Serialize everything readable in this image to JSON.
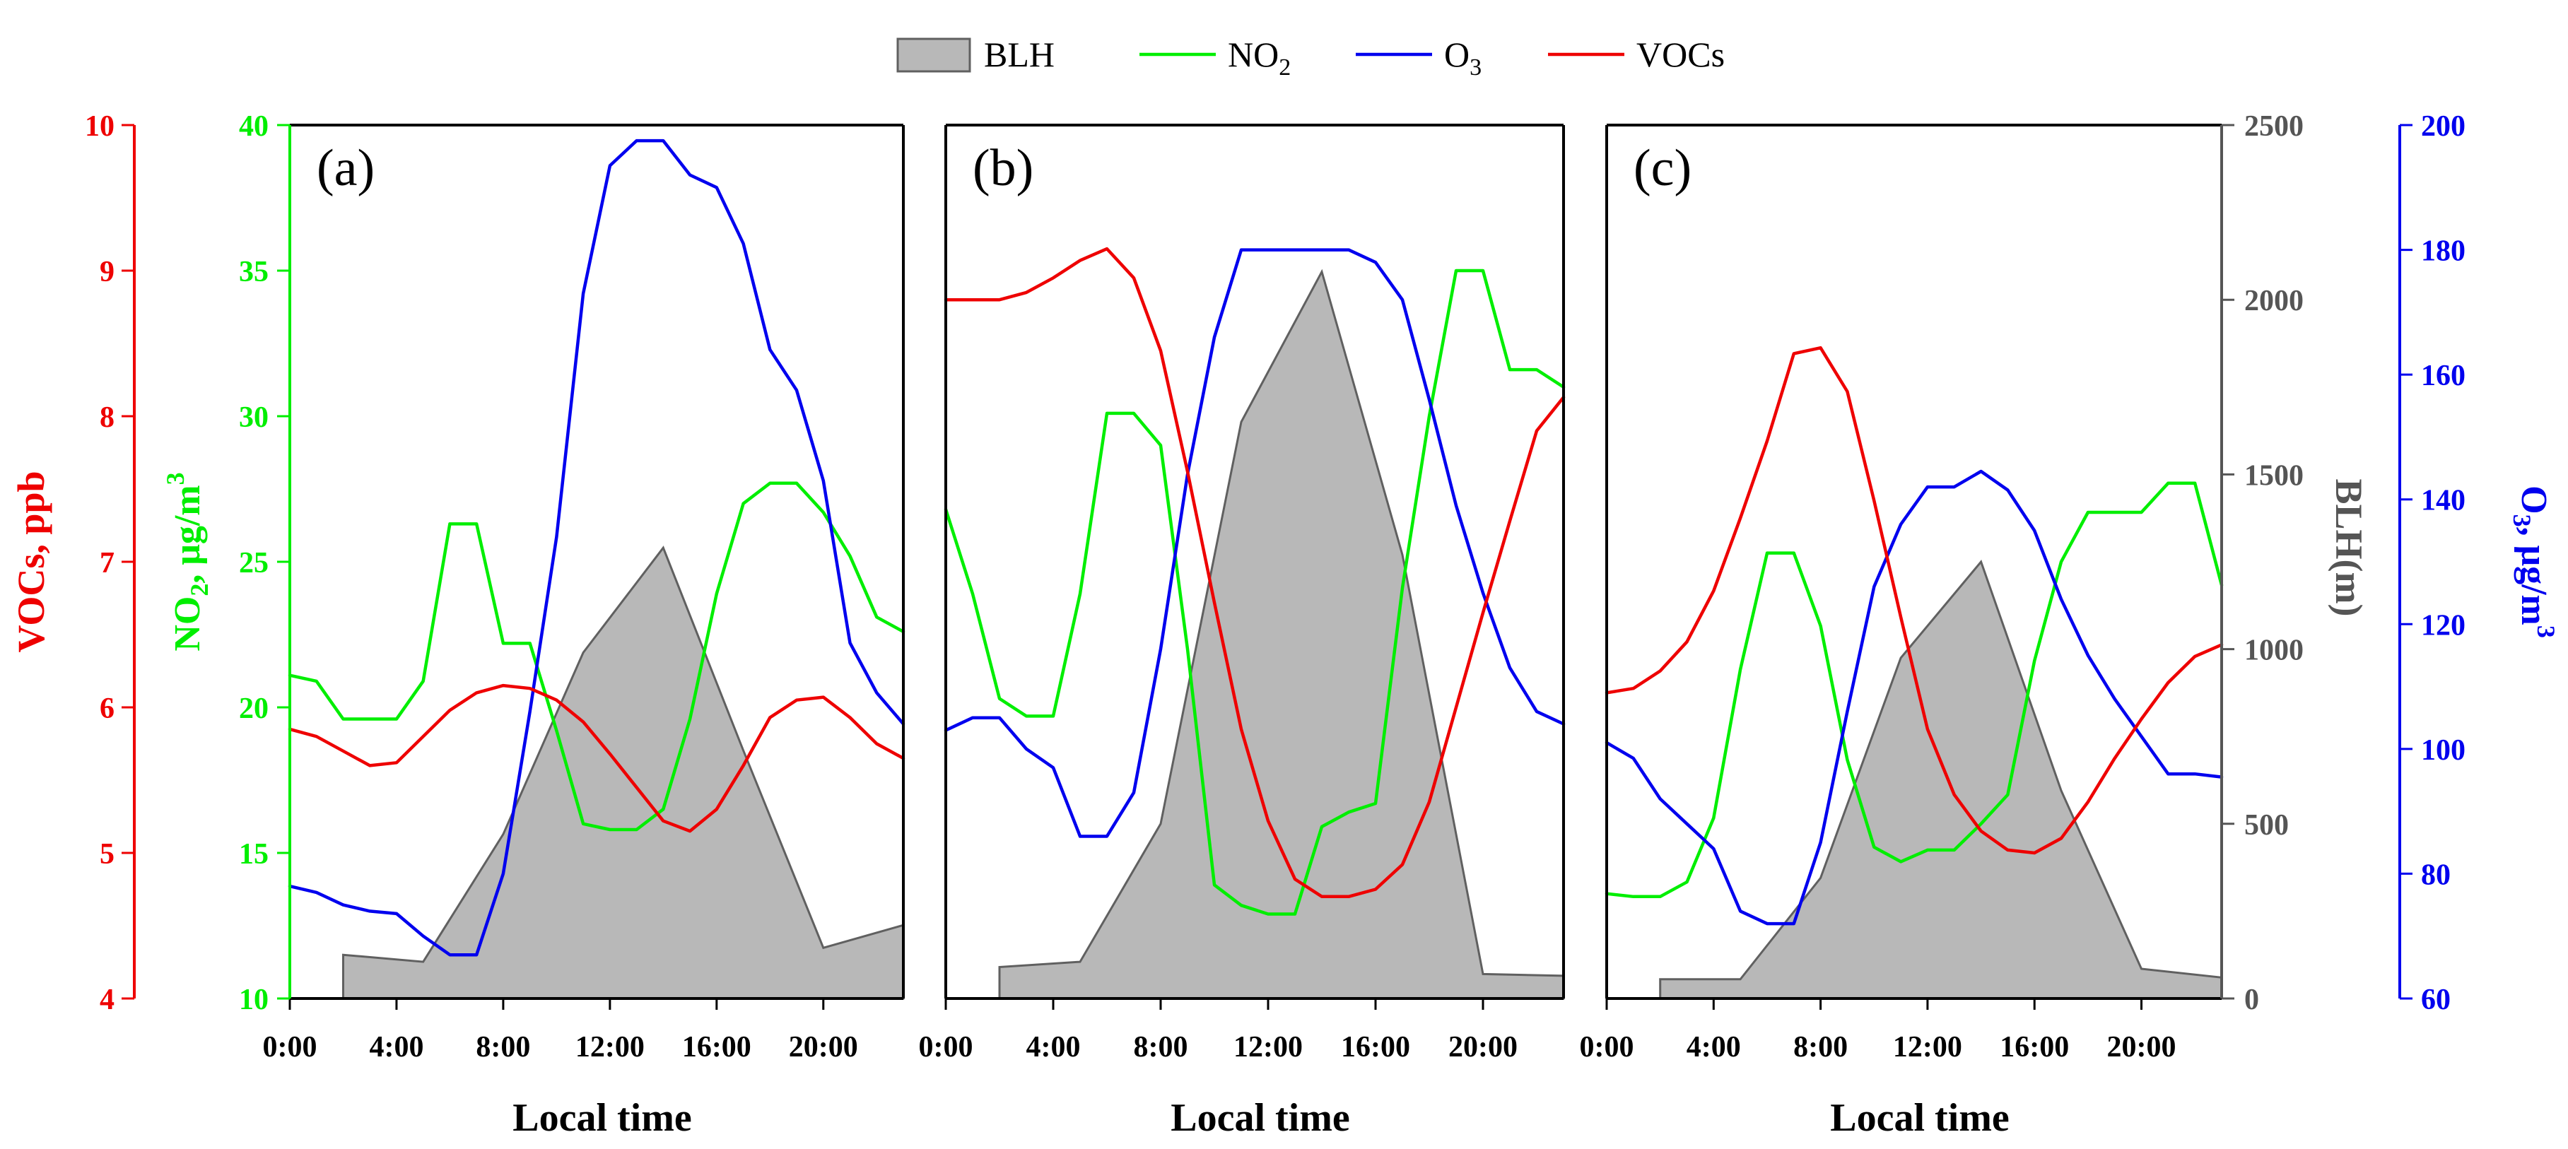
{
  "chart_data": {
    "type": "line",
    "legend": {
      "position": "top-center",
      "items": [
        {
          "key": "blh",
          "label": "BLH",
          "kind": "area"
        },
        {
          "key": "no2",
          "label": "NO",
          "sub": "2",
          "kind": "line"
        },
        {
          "key": "o3",
          "label": "O",
          "sub": "3",
          "kind": "line"
        },
        {
          "key": "vocs",
          "label": "VOCs",
          "kind": "line"
        }
      ]
    },
    "colors": {
      "blh_fill": "#b8b8b8",
      "blh_stroke": "#606060",
      "no2": "#00ee00",
      "o3": "#0000ee",
      "vocs": "#ee0000",
      "axis": "#000000",
      "blh_axis": "#555555"
    },
    "axes": {
      "vocs": {
        "label": "VOCs, ppb",
        "ylim": [
          4,
          10
        ],
        "ticks": [
          "4",
          "5",
          "6",
          "7",
          "8",
          "9",
          "10"
        ]
      },
      "no2": {
        "label_main": "NO",
        "label_sub": "2",
        "label_rest": ", μg/m",
        "label_sup": "3",
        "ylim": [
          10,
          40
        ],
        "ticks": [
          "10",
          "15",
          "20",
          "25",
          "30",
          "35",
          "40"
        ]
      },
      "blh": {
        "label": "BLH(m)",
        "ylim": [
          0,
          2500
        ],
        "ticks": [
          "0",
          "500",
          "1000",
          "1500",
          "2000",
          "2500"
        ]
      },
      "o3": {
        "label_main": "O",
        "label_sub": "3",
        "label_rest": ", μg/m",
        "label_sup": "3",
        "ylim": [
          60,
          200
        ],
        "ticks": [
          "60",
          "80",
          "100",
          "120",
          "140",
          "160",
          "180",
          "200"
        ]
      },
      "x": {
        "label": "Local time",
        "xlim": [
          0,
          23
        ],
        "ticks": [
          "0:00",
          "4:00",
          "8:00",
          "12:00",
          "16:00",
          "20:00"
        ]
      }
    },
    "hours": [
      0,
      1,
      2,
      3,
      4,
      5,
      6,
      7,
      8,
      9,
      10,
      11,
      12,
      13,
      14,
      15,
      16,
      17,
      18,
      19,
      20,
      21,
      22,
      23
    ],
    "panels": [
      {
        "label": "(a)",
        "blh": {
          "x": [
            2,
            5,
            8,
            11,
            14,
            17,
            20,
            23
          ],
          "values": [
            125,
            105,
            470,
            990,
            1290,
            710,
            145,
            210
          ]
        },
        "no2": [
          21.1,
          20.9,
          19.6,
          19.6,
          19.6,
          20.9,
          26.3,
          26.3,
          22.2,
          22.2,
          19.2,
          16,
          15.8,
          15.8,
          16.5,
          19.6,
          23.9,
          27,
          27.7,
          27.7,
          26.7,
          25.2,
          23.1,
          22.6
        ],
        "o3": [
          78,
          77,
          75,
          74,
          73.6,
          70,
          67,
          67,
          80,
          106,
          134,
          173,
          193.5,
          197.5,
          197.5,
          192,
          190,
          181,
          164,
          157.5,
          143,
          117,
          109,
          104
        ],
        "vocs": [
          5.85,
          5.8,
          5.7,
          5.6,
          5.62,
          5.8,
          5.98,
          6.1,
          6.15,
          6.13,
          6.05,
          5.9,
          5.68,
          5.45,
          5.22,
          5.15,
          5.3,
          5.6,
          5.93,
          6.05,
          6.07,
          5.93,
          5.75,
          5.65
        ]
      },
      {
        "label": "(b)",
        "blh": {
          "x": [
            2,
            5,
            8,
            11,
            14,
            17,
            20,
            23
          ],
          "values": [
            90,
            105,
            500,
            1650,
            2080,
            1270,
            70,
            65
          ]
        },
        "no2": [
          26.8,
          23.9,
          20.3,
          19.7,
          19.7,
          23.9,
          30.1,
          30.1,
          29,
          22,
          13.9,
          13.2,
          12.9,
          12.9,
          15.9,
          16.4,
          16.7,
          24.1,
          30,
          35,
          35,
          31.6,
          31.6,
          31
        ],
        "o3": [
          103,
          105,
          105,
          100,
          97,
          86,
          86,
          93,
          116,
          144,
          166,
          180,
          180,
          180,
          180,
          180,
          178,
          172,
          156,
          139,
          125,
          113,
          106,
          104
        ],
        "vocs": [
          8.8,
          8.8,
          8.8,
          8.85,
          8.95,
          9.07,
          9.15,
          8.95,
          8.45,
          7.62,
          6.72,
          5.85,
          5.22,
          4.82,
          4.7,
          4.7,
          4.75,
          4.92,
          5.35,
          6,
          6.65,
          7.28,
          7.9,
          8.13
        ]
      },
      {
        "label": "(c)",
        "blh": {
          "x": [
            2,
            5,
            8,
            11,
            14,
            17,
            20,
            23
          ],
          "values": [
            55,
            55,
            345,
            975,
            1250,
            595,
            85,
            60
          ]
        },
        "no2": [
          13.6,
          13.5,
          13.5,
          14,
          16.2,
          21.3,
          25.3,
          25.3,
          22.8,
          18.2,
          15.2,
          14.7,
          15.1,
          15.1,
          16,
          17,
          21.6,
          25,
          26.7,
          26.7,
          26.7,
          27.7,
          27.7,
          24.2
        ],
        "o3": [
          101,
          98.5,
          92,
          88,
          84,
          74,
          72,
          72,
          85,
          106,
          126,
          136,
          142,
          142,
          144.5,
          141.5,
          135,
          124,
          115,
          108,
          102,
          96,
          96,
          95.5
        ],
        "vocs": [
          6.1,
          6.13,
          6.25,
          6.45,
          6.8,
          7.3,
          7.83,
          8.43,
          8.47,
          8.17,
          7.42,
          6.62,
          5.85,
          5.4,
          5.15,
          5.02,
          5,
          5.1,
          5.35,
          5.65,
          5.92,
          6.17,
          6.35,
          6.43
        ]
      }
    ]
  }
}
